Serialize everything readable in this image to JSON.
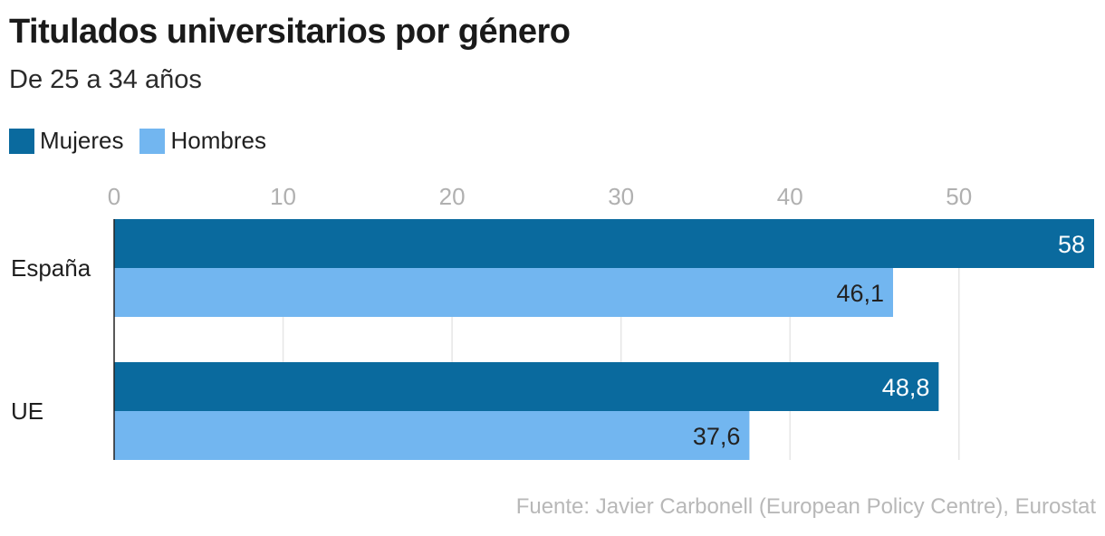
{
  "header": {
    "title": "Titulados universitarios por género",
    "subtitle": "De 25 a 34 años"
  },
  "source": "Fuente: Javier Carbonell (European Policy Centre), Eurostat",
  "colors": {
    "mujeres": "#0a6a9e",
    "hombres": "#72b6f0",
    "grid": "#e6e6e6",
    "tick": "#b0b0b0"
  },
  "chart_data": {
    "type": "bar",
    "orientation": "horizontal",
    "title": "Titulados universitarios por género",
    "subtitle": "De 25 a 34 años",
    "categories": [
      "España",
      "UE"
    ],
    "series": [
      {
        "name": "Mujeres",
        "values": [
          58,
          48.8
        ],
        "labels": [
          "58",
          "48,8"
        ]
      },
      {
        "name": "Hombres",
        "values": [
          46.1,
          37.6
        ],
        "labels": [
          "46,1",
          "37,6"
        ]
      }
    ],
    "xticks": [
      0,
      10,
      20,
      30,
      40,
      50
    ],
    "xlim": [
      0,
      58
    ],
    "grid": true,
    "legend_position": "top-left",
    "xlabel": "",
    "ylabel": ""
  }
}
